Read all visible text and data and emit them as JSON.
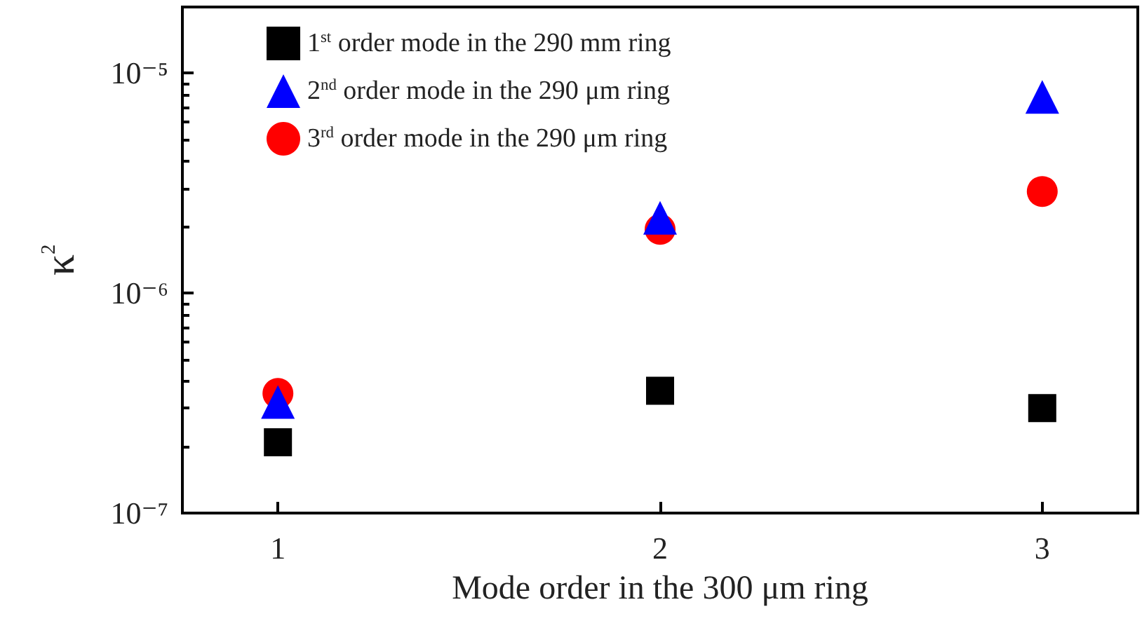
{
  "chart_data": {
    "type": "scatter",
    "xlabel": "Mode order in the 300 μm ring",
    "ylabel": "κ$^{2}$",
    "series": [
      {
        "name": "1$^{st}$ order mode in the 290 mm ring",
        "color": "#000000",
        "marker": "square",
        "x": [
          1,
          2,
          3
        ],
        "values": [
          2.1e-07,
          3.6e-07,
          3e-07
        ]
      },
      {
        "name": "2$^{nd}$ order mode in the 290 μm ring",
        "color": "#0000ff",
        "marker": "triangle",
        "x": [
          1,
          2,
          3
        ],
        "values": [
          3.2e-07,
          2.2e-06,
          7.8e-06
        ]
      },
      {
        "name": "3$^{rd}$ order mode in the 290 μm ring",
        "color": "#ff0000",
        "marker": "circle",
        "x": [
          1,
          2,
          3
        ],
        "values": [
          3.5e-07,
          1.95e-06,
          2.9e-06
        ]
      }
    ],
    "xlim": [
      0.75,
      3.25
    ],
    "xticks": [
      1,
      2,
      3
    ],
    "ylim": [
      1e-07,
      2e-05
    ],
    "yticks": [
      {
        "value": 1e-07,
        "label": "10⁻⁷"
      },
      {
        "value": 1e-06,
        "label": "10⁻⁶"
      },
      {
        "value": 1e-05,
        "label": "10⁻⁵"
      }
    ],
    "log": "y",
    "grid": false,
    "legend": "top left"
  }
}
